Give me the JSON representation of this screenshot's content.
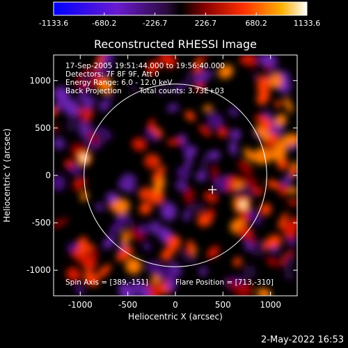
{
  "chart_data": {
    "type": "heatmap",
    "title": "Reconstructed RHESSI Image",
    "xlabel": "Heliocentric X (arcsec)",
    "ylabel": "Heliocentric Y (arcsec)",
    "xlim": [
      -1280,
      1280
    ],
    "ylim": [
      -1270,
      1270
    ],
    "x_ticks": [
      -1000,
      -500,
      0,
      500,
      1000
    ],
    "y_ticks": [
      -1000,
      -500,
      0,
      500,
      1000
    ],
    "colorbar": {
      "min": -1133.6,
      "max": 1133.6,
      "ticks": [
        "-1133.6",
        "-680.2",
        "-226.7",
        "226.7",
        "680.2",
        "1133.6"
      ]
    },
    "annotations": [
      "17-Sep-2005 19:51:44.000 to 19:56:40.000",
      "Detectors: 7F 8F 9F, Att 0",
      "Energy Range: 6.0 - 12.0 keV",
      "Back Projection",
      "Total counts: 3.73E+03"
    ],
    "spin_axis_label": "Spin Axis = [389,-151]",
    "flare_position_label": "Flare Position = [713,-310]",
    "solar_disk_radius": 960,
    "spin_axis": [
      389,
      -151
    ],
    "flare_position": [
      713,
      -310
    ],
    "hot_spots": [
      {
        "x": 713,
        "y": -310,
        "level": 1.0
      },
      {
        "x": -960,
        "y": 180,
        "level": 0.95
      }
    ]
  },
  "footer": {
    "timestamp": "2-May-2022 16:53"
  },
  "colors": {
    "background": "#000000",
    "foreground": "#ffffff"
  }
}
